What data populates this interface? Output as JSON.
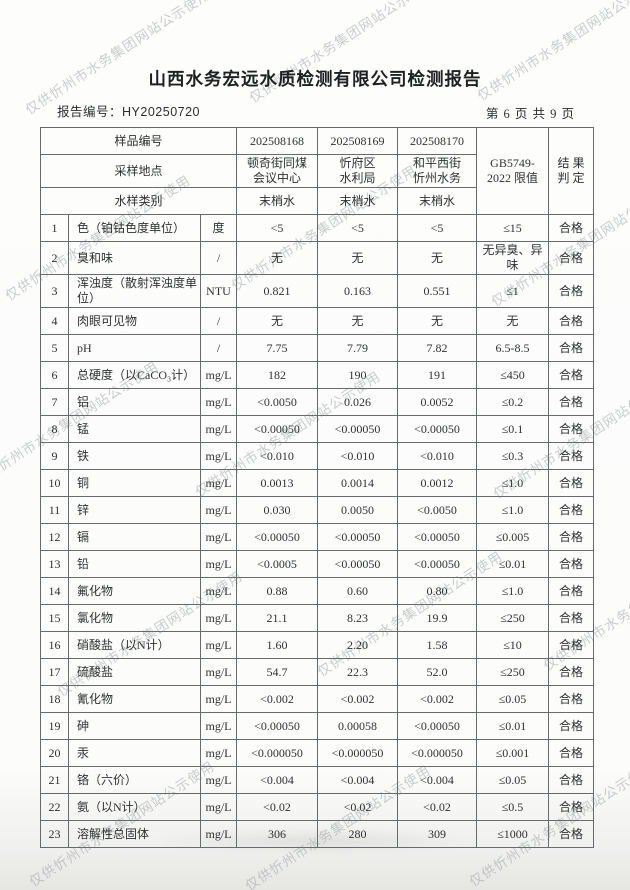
{
  "page": {
    "title": "山西水务宏远水质检测有限公司检测报告",
    "report_no_label": "报告编号：",
    "report_no": "HY20250720",
    "page_indicator": "第 6 页 共 9 页"
  },
  "watermark": {
    "text": "仅供忻州市水务集团网站公示使用",
    "color": "#9fa4a7"
  },
  "table": {
    "header": {
      "sample_no_label": "样品编号",
      "sampling_location_label": "采样地点",
      "water_type_label": "水样类别",
      "sample_nos": [
        "202508168",
        "202508169",
        "202508170"
      ],
      "locations": [
        "顿奇街同煤\n会议中心",
        "忻府区\n水利局",
        "和平西街\n忻州水务"
      ],
      "water_types": [
        "末梢水",
        "末梢水",
        "末梢水"
      ],
      "limit_label": "GB5749-\n2022 限值",
      "result_label": "结 果\n判 定"
    },
    "rows": [
      {
        "no": "1",
        "item": "色（铂钴色度单位）",
        "unit": "度",
        "v1": "<5",
        "v2": "<5",
        "v3": "<5",
        "limit": "≤15",
        "result": "合格"
      },
      {
        "no": "2",
        "item": "臭和味",
        "unit": "/",
        "v1": "无",
        "v2": "无",
        "v3": "无",
        "limit": "无异臭、异味",
        "result": "合格"
      },
      {
        "no": "3",
        "item": "浑浊度（散射浑浊度单位）",
        "unit": "NTU",
        "v1": "0.821",
        "v2": "0.163",
        "v3": "0.551",
        "limit": "≤1",
        "result": "合格"
      },
      {
        "no": "4",
        "item": "肉眼可见物",
        "unit": "/",
        "v1": "无",
        "v2": "无",
        "v3": "无",
        "limit": "无",
        "result": "合格"
      },
      {
        "no": "5",
        "item": "pH",
        "unit": "/",
        "v1": "7.75",
        "v2": "7.79",
        "v3": "7.82",
        "limit": "6.5-8.5",
        "result": "合格"
      },
      {
        "no": "6",
        "item": "总硬度（以CaCO₃计）",
        "unit": "mg/L",
        "v1": "182",
        "v2": "190",
        "v3": "191",
        "limit": "≤450",
        "result": "合格"
      },
      {
        "no": "7",
        "item": "铝",
        "unit": "mg/L",
        "v1": "<0.0050",
        "v2": "0.026",
        "v3": "0.0052",
        "limit": "≤0.2",
        "result": "合格"
      },
      {
        "no": "8",
        "item": "锰",
        "unit": "mg/L",
        "v1": "<0.00050",
        "v2": "<0.00050",
        "v3": "<0.00050",
        "limit": "≤0.1",
        "result": "合格"
      },
      {
        "no": "9",
        "item": "铁",
        "unit": "mg/L",
        "v1": "<0.010",
        "v2": "<0.010",
        "v3": "<0.010",
        "limit": "≤0.3",
        "result": "合格"
      },
      {
        "no": "10",
        "item": "铜",
        "unit": "mg/L",
        "v1": "0.0013",
        "v2": "0.0014",
        "v3": "0.0012",
        "limit": "≤1.0",
        "result": "合格"
      },
      {
        "no": "11",
        "item": "锌",
        "unit": "mg/L",
        "v1": "0.030",
        "v2": "0.0050",
        "v3": "<0.0050",
        "limit": "≤1.0",
        "result": "合格"
      },
      {
        "no": "12",
        "item": "镉",
        "unit": "mg/L",
        "v1": "<0.00050",
        "v2": "<0.00050",
        "v3": "<0.00050",
        "limit": "≤0.005",
        "result": "合格"
      },
      {
        "no": "13",
        "item": "铅",
        "unit": "mg/L",
        "v1": "<0.0005",
        "v2": "<0.00050",
        "v3": "<0.00050",
        "limit": "≤0.01",
        "result": "合格"
      },
      {
        "no": "14",
        "item": "氟化物",
        "unit": "mg/L",
        "v1": "0.88",
        "v2": "0.60",
        "v3": "0.80",
        "limit": "≤1.0",
        "result": "合格"
      },
      {
        "no": "15",
        "item": "氯化物",
        "unit": "mg/L",
        "v1": "21.1",
        "v2": "8.23",
        "v3": "19.9",
        "limit": "≤250",
        "result": "合格"
      },
      {
        "no": "16",
        "item": "硝酸盐（以N计）",
        "unit": "mg/L",
        "v1": "1.60",
        "v2": "2.20",
        "v3": "1.58",
        "limit": "≤10",
        "result": "合格"
      },
      {
        "no": "17",
        "item": "硫酸盐",
        "unit": "mg/L",
        "v1": "54.7",
        "v2": "22.3",
        "v3": "52.0",
        "limit": "≤250",
        "result": "合格"
      },
      {
        "no": "18",
        "item": "氰化物",
        "unit": "mg/L",
        "v1": "<0.002",
        "v2": "<0.002",
        "v3": "<0.002",
        "limit": "≤0.05",
        "result": "合格"
      },
      {
        "no": "19",
        "item": "砷",
        "unit": "mg/L",
        "v1": "<0.00050",
        "v2": "0.00058",
        "v3": "<0.00050",
        "limit": "≤0.01",
        "result": "合格"
      },
      {
        "no": "20",
        "item": "汞",
        "unit": "mg/L",
        "v1": "<0.000050",
        "v2": "<0.000050",
        "v3": "<0.000050",
        "limit": "≤0.001",
        "result": "合格"
      },
      {
        "no": "21",
        "item": "铬（六价）",
        "unit": "mg/L",
        "v1": "<0.004",
        "v2": "<0.004",
        "v3": "<0.004",
        "limit": "≤0.05",
        "result": "合格"
      },
      {
        "no": "22",
        "item": "氨（以N计）",
        "unit": "mg/L",
        "v1": "<0.02",
        "v2": "<0.02",
        "v3": "<0.02",
        "limit": "≤0.5",
        "result": "合格"
      },
      {
        "no": "23",
        "item": "溶解性总固体",
        "unit": "mg/L",
        "v1": "306",
        "v2": "280",
        "v3": "309",
        "limit": "≤1000",
        "result": "合格"
      }
    ]
  }
}
